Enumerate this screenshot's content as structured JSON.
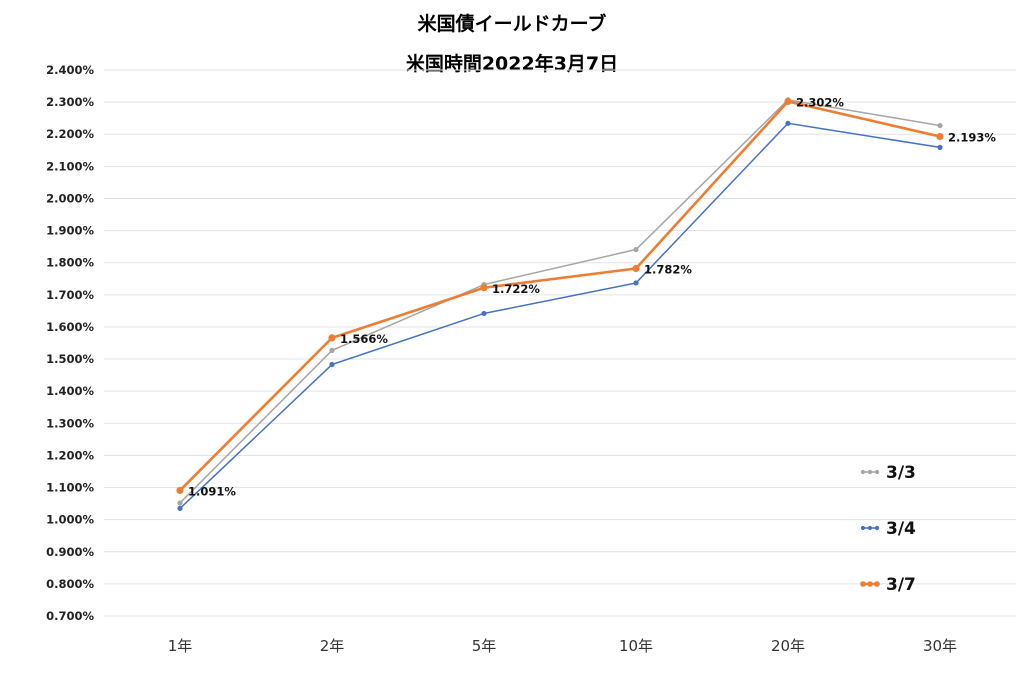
{
  "chart_data": {
    "type": "line",
    "title": "米国債イールドカーブ",
    "subtitle": "米国時間2022年3月7日",
    "categories": [
      "1年",
      "2年",
      "5年",
      "10年",
      "20年",
      "30年"
    ],
    "yticks": [
      "0.700%",
      "0.800%",
      "0.900%",
      "1.000%",
      "1.100%",
      "1.200%",
      "1.300%",
      "1.400%",
      "1.500%",
      "1.600%",
      "1.700%",
      "1.800%",
      "1.900%",
      "2.000%",
      "2.100%",
      "2.200%",
      "2.300%",
      "2.400%"
    ],
    "ylim": [
      0.7,
      2.4
    ],
    "grid": true,
    "legend_position": "bottom-right",
    "series": [
      {
        "name": "3/3",
        "color": "#a5a5a5",
        "values": [
          1.052,
          1.527,
          1.732,
          1.841,
          2.307,
          2.227
        ]
      },
      {
        "name": "3/4",
        "color": "#4472c4",
        "values": [
          1.035,
          1.483,
          1.642,
          1.737,
          2.234,
          2.159
        ]
      },
      {
        "name": "3/7",
        "color": "#ed7d31",
        "values": [
          1.091,
          1.566,
          1.722,
          1.782,
          2.302,
          2.193
        ],
        "labels": [
          "1.091%",
          "1.566%",
          "1.722%",
          "1.782%",
          "2.302%",
          "2.193%"
        ]
      }
    ]
  }
}
